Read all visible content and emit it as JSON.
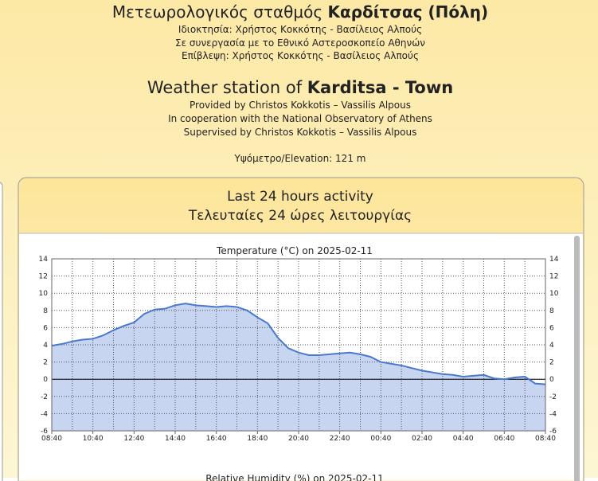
{
  "header": {
    "title_prefix": "Μετεωρολογικός σταθμός",
    "title_bold": "Καρδίτσας (Πόλη)",
    "lines_gr": [
      "Ιδιοκτησία: Χρήστος Κοκκότης - Βασίλειος Αλπούς",
      "Σε συνεργασία με το Εθνικό Αστεροσκοπείο Αθηνών",
      "Επίβλεψη: Χρήστος Κοκκότης - Βασίλειος Αλπούς"
    ],
    "title_en_prefix": "Weather station of",
    "title_en_bold": "Karditsa - Town",
    "lines_en": [
      "Provided by Christos Kokkotis – Vassilis Alpous",
      "In cooperation with the National Observatory of Athens",
      "Supervised by Christos Kokkotis – Vassilis Alpous"
    ],
    "elevation": "Υψόμετρο/Elevation: 121 m"
  },
  "panel": {
    "title_en": "Last 24 hours activity",
    "title_gr": "Τελευταίες 24 ώρες λειτουργίας"
  },
  "chart_data": [
    {
      "type": "area",
      "title": "Temperature (°C) on 2025-02-11",
      "color": "#4a78cc",
      "fill": "#c7d5f0",
      "grid": true,
      "dual_y": true,
      "x": [
        0,
        0.5,
        1,
        1.5,
        2,
        2.5,
        3,
        3.5,
        4,
        4.5,
        5,
        5.5,
        6,
        6.5,
        7,
        7.5,
        8,
        8.5,
        9,
        9.5,
        10,
        10.5,
        11,
        11.5,
        12,
        12.5,
        13,
        13.5,
        14,
        14.5,
        15,
        15.5,
        16,
        16.5,
        17,
        17.5,
        18,
        18.5,
        19,
        19.5,
        20,
        20.5,
        21,
        21.5,
        22,
        22.5,
        23,
        23.5,
        24
      ],
      "values": [
        3.9,
        4.1,
        4.4,
        4.6,
        4.7,
        5.1,
        5.7,
        6.2,
        6.6,
        7.6,
        8.1,
        8.2,
        8.6,
        8.8,
        8.6,
        8.5,
        8.4,
        8.5,
        8.4,
        8.0,
        7.2,
        6.5,
        4.8,
        3.6,
        3.1,
        2.8,
        2.8,
        2.9,
        3.0,
        3.1,
        2.9,
        2.6,
        2.0,
        1.8,
        1.6,
        1.3,
        1.0,
        0.8,
        0.6,
        0.5,
        0.3,
        0.4,
        0.5,
        0.1,
        0.0,
        0.2,
        0.3,
        -0.5,
        -0.6
      ],
      "xlim": [
        0,
        24
      ],
      "xticks": [
        {
          "value": 0,
          "label": "08:40"
        },
        {
          "value": 2,
          "label": "10:40"
        },
        {
          "value": 4,
          "label": "12:40"
        },
        {
          "value": 6,
          "label": "14:40"
        },
        {
          "value": 8,
          "label": "16:40"
        },
        {
          "value": 10,
          "label": "18:40"
        },
        {
          "value": 12,
          "label": "20:40"
        },
        {
          "value": 14,
          "label": "22:40"
        },
        {
          "value": 16,
          "label": "00:40"
        },
        {
          "value": 18,
          "label": "02:40"
        },
        {
          "value": 20,
          "label": "04:40"
        },
        {
          "value": 22,
          "label": "06:40"
        },
        {
          "value": 24,
          "label": "08:40"
        }
      ],
      "xminor": [
        1,
        3,
        5,
        7,
        9,
        11,
        13,
        15,
        17,
        19,
        21,
        23
      ],
      "ylim": [
        -6,
        14
      ],
      "yticks": [
        -6,
        -4,
        -2,
        0,
        2,
        4,
        6,
        8,
        10,
        12,
        14
      ]
    },
    {
      "type": "area",
      "title": "Relative Humidity (%) on 2025-02-11"
    }
  ]
}
